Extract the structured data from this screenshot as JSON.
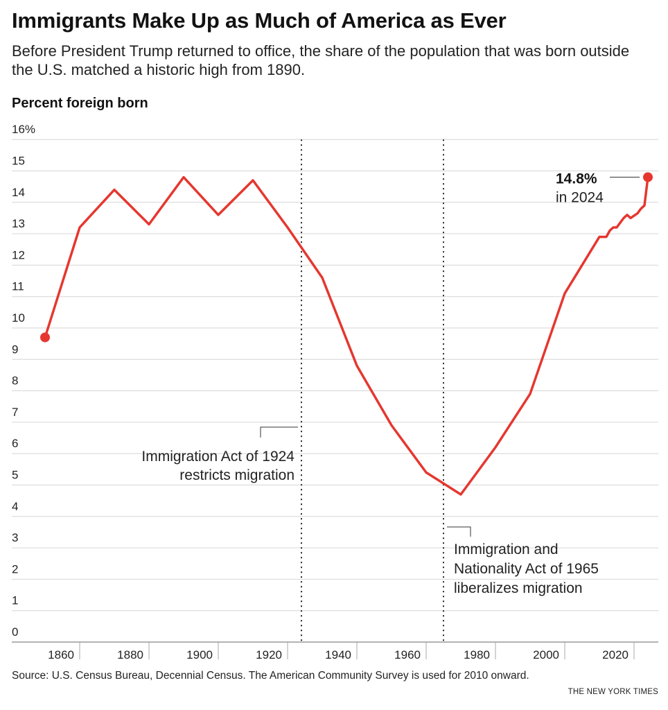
{
  "header": {
    "title": "Immigrants Make Up as Much of America as Ever",
    "subtitle": "Before President Trump returned to office, the share of the population that was born outside the U.S. matched a historic high from 1890."
  },
  "footer": {
    "source": "Source: U.S. Census Bureau, Decennial Census. The American Community Survey is used for 2010 onward.",
    "credit": "THE NEW YORK TIMES"
  },
  "colors": {
    "line": "#e5372f",
    "grid": "#d6d6d6",
    "axis": "#999999",
    "text": "#121212"
  },
  "chart_data": {
    "type": "line",
    "ylabel": "Percent foreign born",
    "ylim": [
      0,
      16
    ],
    "yticks": [
      0,
      1,
      2,
      3,
      4,
      5,
      6,
      7,
      8,
      9,
      10,
      11,
      12,
      13,
      14,
      15,
      16
    ],
    "ytick_labels": [
      "0",
      "1",
      "2",
      "3",
      "4",
      "5",
      "6",
      "7",
      "8",
      "9",
      "10",
      "11",
      "12",
      "13",
      "14",
      "15",
      "16%"
    ],
    "xlim": [
      1850,
      2024
    ],
    "xticks": [
      1860,
      1880,
      1900,
      1920,
      1940,
      1960,
      1980,
      2000,
      2020
    ],
    "xtick_labels": [
      "1860",
      "1880",
      "1900",
      "1920",
      "1940",
      "1960",
      "1980",
      "2000",
      "2020"
    ],
    "grid": true,
    "series": [
      {
        "x": [
          1850,
          1860,
          1870,
          1880,
          1890,
          1900,
          1910,
          1920,
          1930,
          1940,
          1950,
          1960,
          1970,
          1980,
          1990,
          2000,
          2010,
          2011,
          2012,
          2013,
          2014,
          2015,
          2016,
          2017,
          2018,
          2019,
          2021,
          2022,
          2023,
          2024
        ],
        "y": [
          9.7,
          13.2,
          14.4,
          13.3,
          14.8,
          13.6,
          14.7,
          13.2,
          11.6,
          8.8,
          6.9,
          5.4,
          4.7,
          6.2,
          7.9,
          11.1,
          12.9,
          12.9,
          12.9,
          13.1,
          13.2,
          13.2,
          13.35,
          13.5,
          13.6,
          13.5,
          13.65,
          13.8,
          13.9,
          14.8
        ]
      }
    ],
    "annotations": [
      {
        "type": "vline",
        "x": 1924,
        "text_lines": [
          "Immigration Act of 1924",
          "restricts migration"
        ]
      },
      {
        "type": "vline",
        "x": 1965,
        "text_lines": [
          "Immigration and",
          "Nationality Act of 1965",
          "liberalizes migration"
        ]
      },
      {
        "type": "point",
        "x": 2024,
        "y": 14.8,
        "value_label": "14.8%",
        "sub_label": "in 2024"
      }
    ]
  }
}
